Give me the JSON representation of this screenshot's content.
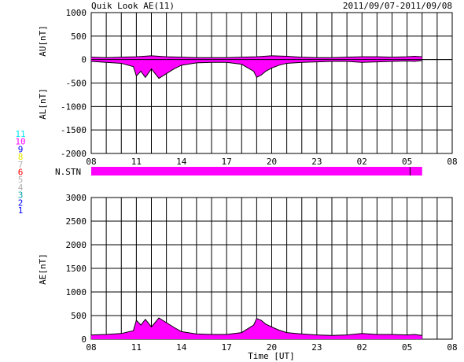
{
  "title": "Quik Look AE(11)",
  "date_range": "2011/09/07-2011/09/08",
  "colors": {
    "fill": "#ff00ff",
    "trace": "#000000",
    "grid": "#000000"
  },
  "station_legend": [
    {
      "label": "11",
      "color": "#00e5ee"
    },
    {
      "label": "10",
      "color": "#ff00ff"
    },
    {
      "label": "9",
      "color": "#0000ff"
    },
    {
      "label": "8",
      "color": "#e6e600"
    },
    {
      "label": "7",
      "color": "#b0b0b0"
    },
    {
      "label": "6",
      "color": "#ff0000"
    },
    {
      "label": "5",
      "color": "#b0b0b0"
    },
    {
      "label": "4",
      "color": "#b0b0b0"
    },
    {
      "label": "3",
      "color": "#00a0a0"
    },
    {
      "label": "2",
      "color": "#0000ff"
    },
    {
      "label": "1",
      "color": "#0000ff"
    }
  ],
  "chart_data": [
    {
      "type": "area",
      "ylabel_upper": "AU[nT]",
      "ylabel_lower": "AL[nT]",
      "ylim": [
        -2000,
        1000
      ],
      "yticks": [
        "1000",
        "500",
        "0",
        "-500",
        "-1000",
        "-1500",
        "-2000"
      ],
      "xlim_hours": [
        8,
        32
      ],
      "xticks": [
        "08",
        "11",
        "14",
        "17",
        "20",
        "23",
        "02",
        "05",
        "08"
      ],
      "grid": true,
      "series": [
        {
          "role": "AU",
          "x": [
            8,
            9,
            10,
            11,
            11.5,
            12,
            12.5,
            13,
            14,
            15,
            16,
            17,
            18,
            19,
            20,
            21,
            22,
            23,
            24,
            25,
            26,
            27,
            28,
            29,
            29.5,
            30
          ],
          "values": [
            50,
            40,
            50,
            60,
            70,
            80,
            70,
            60,
            50,
            40,
            40,
            40,
            50,
            60,
            80,
            70,
            50,
            40,
            40,
            50,
            60,
            60,
            50,
            60,
            70,
            60
          ]
        },
        {
          "role": "AL",
          "x": [
            8,
            9,
            10,
            10.8,
            11,
            11.3,
            11.6,
            12,
            12.5,
            13,
            13.5,
            14,
            15,
            16,
            17,
            18,
            18.8,
            19,
            19.3,
            19.6,
            20,
            20.5,
            21,
            22,
            23,
            24,
            25,
            26,
            27,
            28,
            29,
            29.5,
            30
          ],
          "values": [
            -40,
            -60,
            -80,
            -150,
            -350,
            -250,
            -380,
            -200,
            -400,
            -300,
            -200,
            -120,
            -70,
            -60,
            -60,
            -100,
            -250,
            -380,
            -330,
            -250,
            -180,
            -120,
            -80,
            -60,
            -50,
            -40,
            -40,
            -60,
            -50,
            -40,
            -30,
            -40,
            -20
          ]
        }
      ]
    },
    {
      "type": "bar",
      "ylabel": "N.STN",
      "x_start": 8,
      "x_end": 30,
      "marker_at": 29.2
    },
    {
      "type": "area",
      "ylabel": "AE[nT]",
      "xlabel": "Time [UT]",
      "ylim": [
        0,
        3000
      ],
      "yticks": [
        "3000",
        "2500",
        "2000",
        "1500",
        "1000",
        "500",
        "0"
      ],
      "xlim_hours": [
        8,
        32
      ],
      "xticks": [
        "08",
        "11",
        "14",
        "17",
        "20",
        "23",
        "02",
        "05",
        "08"
      ],
      "grid": true,
      "series": [
        {
          "role": "AE",
          "x": [
            8,
            9,
            10,
            10.8,
            11,
            11.3,
            11.6,
            12,
            12.5,
            13,
            13.5,
            14,
            15,
            16,
            17,
            18,
            18.8,
            19,
            19.3,
            19.6,
            20,
            20.5,
            21,
            22,
            23,
            24,
            25,
            26,
            27,
            28,
            29,
            29.5,
            30
          ],
          "values": [
            90,
            100,
            120,
            180,
            400,
            300,
            420,
            260,
            450,
            350,
            250,
            160,
            110,
            100,
            100,
            140,
            300,
            440,
            400,
            320,
            260,
            190,
            140,
            110,
            90,
            80,
            90,
            120,
            100,
            100,
            90,
            100,
            80
          ]
        }
      ]
    }
  ]
}
